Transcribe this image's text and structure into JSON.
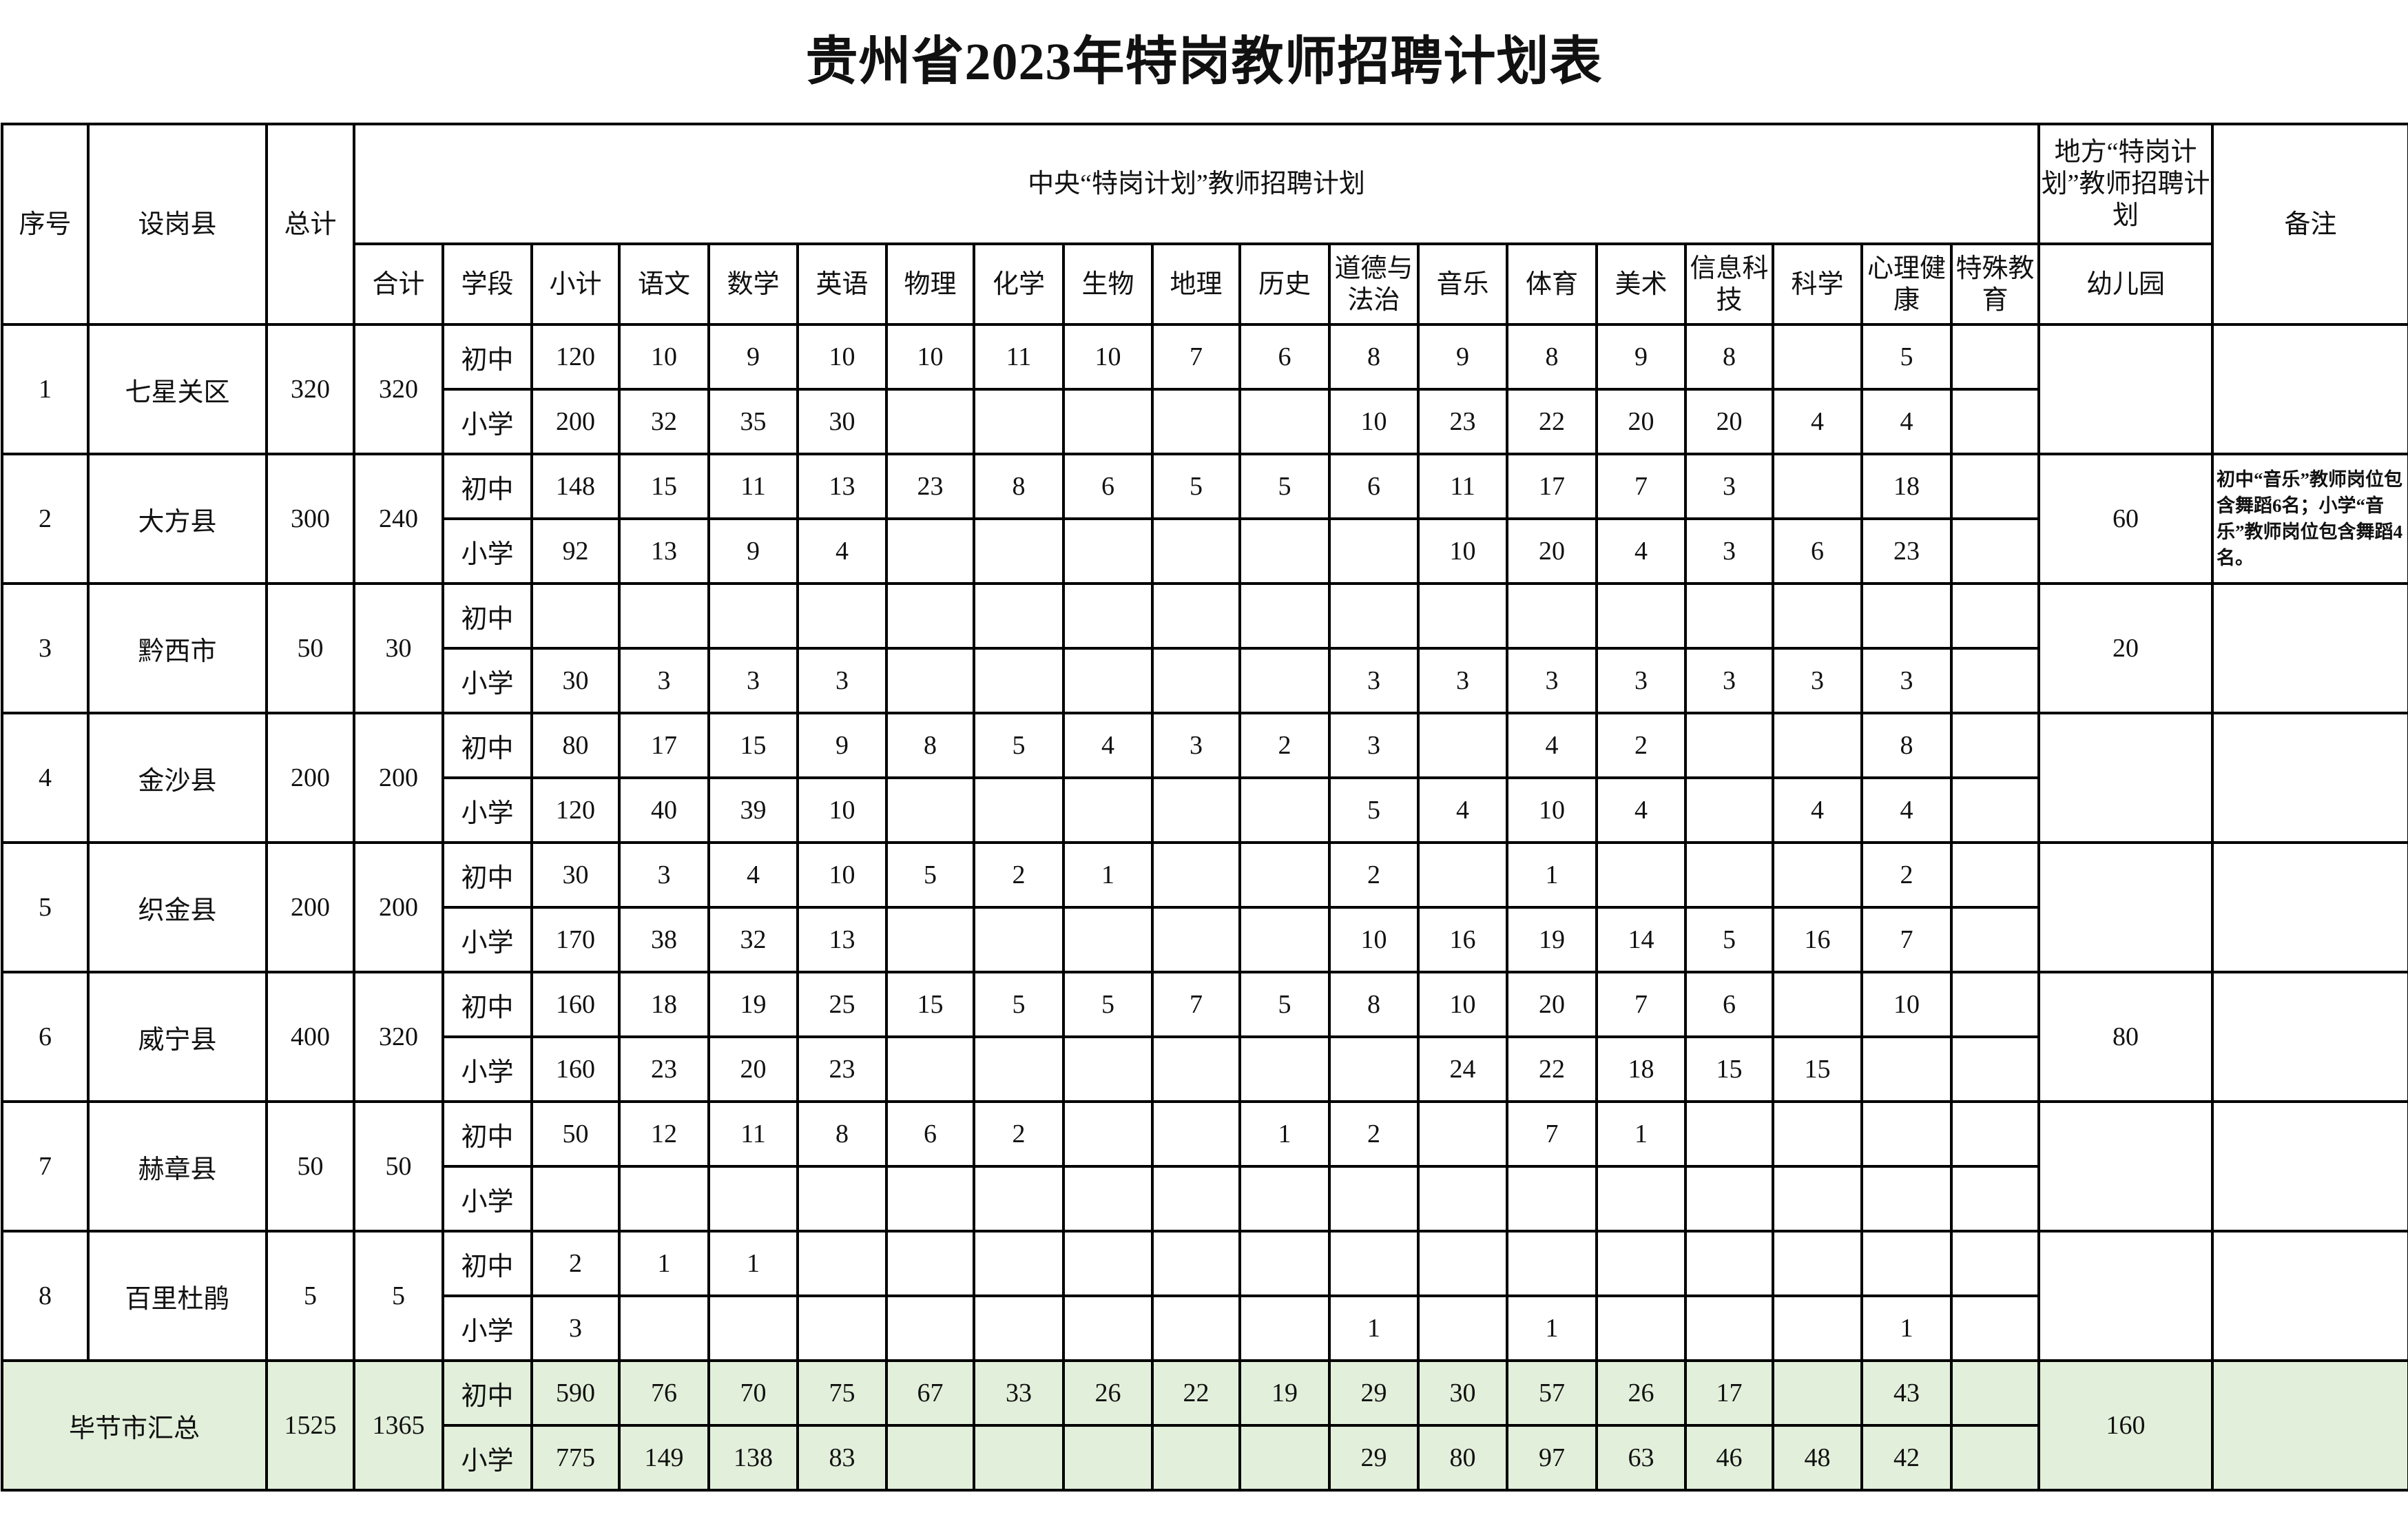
{
  "title": "贵州省2023年特岗教师招聘计划表",
  "header": {
    "seq": "序号",
    "county": "设岗县",
    "total": "总计",
    "central_plan": "中央“特岗计划”教师招聘计划",
    "local_plan": "地方“特岗计划”教师招聘计划",
    "remarks": "备注",
    "subtotal_all": "合计",
    "stage": "学段",
    "kindergarten": "幼儿园",
    "subjects": [
      "小计",
      "语文",
      "数学",
      "英语",
      "物理",
      "化学",
      "生物",
      "地理",
      "历史",
      "道德与法治",
      "音乐",
      "体育",
      "美术",
      "信息科技",
      "科学",
      "心理健康",
      "特殊教育"
    ]
  },
  "stages": [
    "初中",
    "小学"
  ],
  "rows": [
    {
      "seq": "1",
      "county": "七星关区",
      "total": "320",
      "sum": "320",
      "kindergarten": "",
      "note": "",
      "middle": [
        "120",
        "10",
        "9",
        "10",
        "10",
        "11",
        "10",
        "7",
        "6",
        "8",
        "9",
        "8",
        "9",
        "8",
        "",
        "5",
        ""
      ],
      "primary": [
        "200",
        "32",
        "35",
        "30",
        "",
        "",
        "",
        "",
        "",
        "10",
        "23",
        "22",
        "20",
        "20",
        "4",
        "4",
        ""
      ]
    },
    {
      "seq": "2",
      "county": "大方县",
      "total": "300",
      "sum": "240",
      "kindergarten": "60",
      "note": "初中“音乐”教师岗位包含舞蹈6名；小学“音乐”教师岗位包含舞蹈4名。",
      "middle": [
        "148",
        "15",
        "11",
        "13",
        "23",
        "8",
        "6",
        "5",
        "5",
        "6",
        "11",
        "17",
        "7",
        "3",
        "",
        "18",
        ""
      ],
      "primary": [
        "92",
        "13",
        "9",
        "4",
        "",
        "",
        "",
        "",
        "",
        "",
        "10",
        "20",
        "4",
        "3",
        "6",
        "23",
        ""
      ]
    },
    {
      "seq": "3",
      "county": "黔西市",
      "total": "50",
      "sum": "30",
      "kindergarten": "20",
      "note": "",
      "middle": [
        "",
        "",
        "",
        "",
        "",
        "",
        "",
        "",
        "",
        "",
        "",
        "",
        "",
        "",
        "",
        "",
        ""
      ],
      "primary": [
        "30",
        "3",
        "3",
        "3",
        "",
        "",
        "",
        "",
        "",
        "3",
        "3",
        "3",
        "3",
        "3",
        "3",
        "3",
        ""
      ]
    },
    {
      "seq": "4",
      "county": "金沙县",
      "total": "200",
      "sum": "200",
      "kindergarten": "",
      "note": "",
      "middle": [
        "80",
        "17",
        "15",
        "9",
        "8",
        "5",
        "4",
        "3",
        "2",
        "3",
        "",
        "4",
        "2",
        "",
        "",
        "8",
        ""
      ],
      "primary": [
        "120",
        "40",
        "39",
        "10",
        "",
        "",
        "",
        "",
        "",
        "5",
        "4",
        "10",
        "4",
        "",
        "4",
        "4",
        ""
      ]
    },
    {
      "seq": "5",
      "county": "织金县",
      "total": "200",
      "sum": "200",
      "kindergarten": "",
      "note": "",
      "middle": [
        "30",
        "3",
        "4",
        "10",
        "5",
        "2",
        "1",
        "",
        "",
        "2",
        "",
        "1",
        "",
        "",
        "",
        "2",
        ""
      ],
      "primary": [
        "170",
        "38",
        "32",
        "13",
        "",
        "",
        "",
        "",
        "",
        "10",
        "16",
        "19",
        "14",
        "5",
        "16",
        "7",
        ""
      ]
    },
    {
      "seq": "6",
      "county": "威宁县",
      "total": "400",
      "sum": "320",
      "kindergarten": "80",
      "note": "",
      "middle": [
        "160",
        "18",
        "19",
        "25",
        "15",
        "5",
        "5",
        "7",
        "5",
        "8",
        "10",
        "20",
        "7",
        "6",
        "",
        "10",
        ""
      ],
      "primary": [
        "160",
        "23",
        "20",
        "23",
        "",
        "",
        "",
        "",
        "",
        "",
        "24",
        "22",
        "18",
        "15",
        "15",
        "",
        ""
      ]
    },
    {
      "seq": "7",
      "county": "赫章县",
      "total": "50",
      "sum": "50",
      "kindergarten": "",
      "note": "",
      "middle": [
        "50",
        "12",
        "11",
        "8",
        "6",
        "2",
        "",
        "",
        "1",
        "2",
        "",
        "7",
        "1",
        "",
        "",
        "",
        ""
      ],
      "primary": [
        "",
        "",
        "",
        "",
        "",
        "",
        "",
        "",
        "",
        "",
        "",
        "",
        "",
        "",
        "",
        "",
        ""
      ]
    },
    {
      "seq": "8",
      "county": "百里杜鹃",
      "total": "5",
      "sum": "5",
      "kindergarten": "",
      "note": "",
      "middle": [
        "2",
        "1",
        "1",
        "",
        "",
        "",
        "",
        "",
        "",
        "",
        "",
        "",
        "",
        "",
        "",
        "",
        ""
      ],
      "primary": [
        "3",
        "",
        "",
        "",
        "",
        "",
        "",
        "",
        "",
        "1",
        "",
        "1",
        "",
        "",
        "",
        "1",
        ""
      ]
    }
  ],
  "summary": {
    "label": "毕节市汇总",
    "total": "1525",
    "sum": "1365",
    "kindergarten": "160",
    "note": "",
    "middle": [
      "590",
      "76",
      "70",
      "75",
      "67",
      "33",
      "26",
      "22",
      "19",
      "29",
      "30",
      "57",
      "26",
      "17",
      "",
      "43",
      ""
    ],
    "primary": [
      "775",
      "149",
      "138",
      "83",
      "",
      "",
      "",
      "",
      "",
      "29",
      "80",
      "97",
      "63",
      "46",
      "48",
      "42",
      ""
    ]
  },
  "colors": {
    "summary_bg": "#e2efda",
    "border": "#000000"
  }
}
